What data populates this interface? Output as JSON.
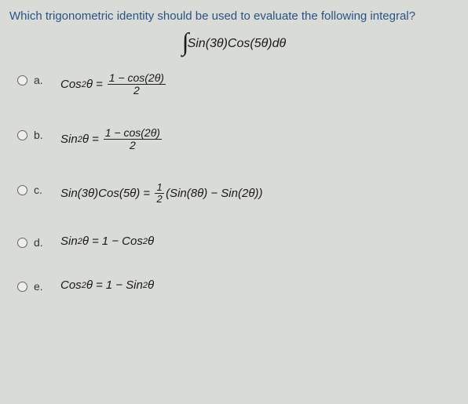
{
  "question": "Which trigonometric identity should be used to evaluate the following integral?",
  "integral": {
    "symbol": "∫",
    "body": "Sin(3θ)Cos(5θ)dθ"
  },
  "choices": [
    {
      "letter": "a.",
      "lhs_func": "Cos",
      "lhs_exp": "2",
      "lhs_arg": "θ",
      "eq": "=",
      "frac_num": "1 − cos(2θ)",
      "frac_den": "2"
    },
    {
      "letter": "b.",
      "lhs_func": "Sin",
      "lhs_exp": "2",
      "lhs_arg": "θ",
      "eq": "=",
      "frac_num": "1 − cos(2θ)",
      "frac_den": "2"
    },
    {
      "letter": "c.",
      "lhs_full": "Sin(3θ)Cos(5θ)",
      "eq": "=",
      "frac_small_num": "1",
      "frac_small_den": "2",
      "rhs_tail": "(Sin(8θ) − Sin(2θ))"
    },
    {
      "letter": "d.",
      "lhs_func": "Sin",
      "lhs_exp": "2",
      "lhs_arg": "θ",
      "eq": "=",
      "rhs_plain_pre": "1 − Cos",
      "rhs_plain_exp": "2",
      "rhs_plain_post": "θ"
    },
    {
      "letter": "e.",
      "lhs_func": "Cos",
      "lhs_exp": "2",
      "lhs_arg": "θ",
      "eq": "=",
      "rhs_plain_pre": "1 − Sin",
      "rhs_plain_exp": "2",
      "rhs_plain_post": "θ"
    }
  ],
  "colors": {
    "background": "#d9dbd6",
    "question_text": "#2a5289",
    "formula_text": "#1a1a1a"
  }
}
